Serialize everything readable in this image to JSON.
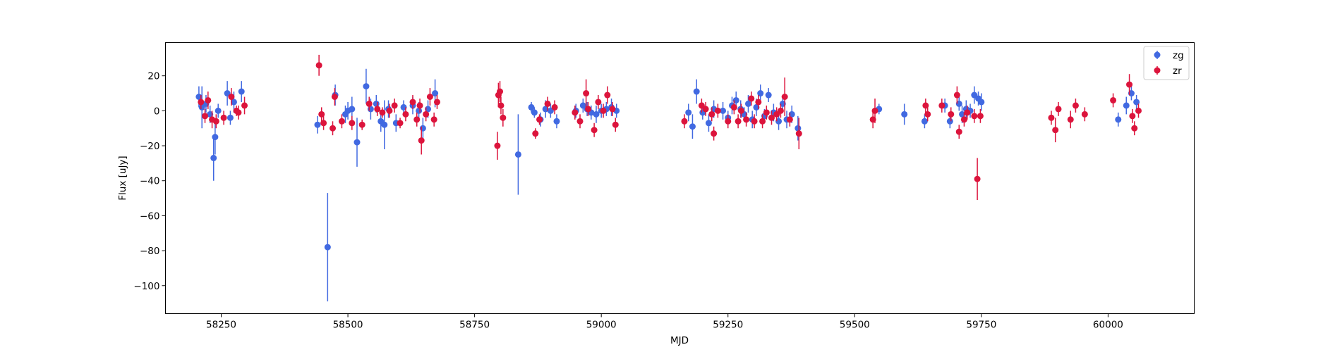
{
  "chart_data": {
    "type": "scatter",
    "title": "",
    "xlabel": "MJD",
    "ylabel": "Flux [uJy]",
    "xlim": [
      58140,
      60170
    ],
    "ylim": [
      -116,
      39
    ],
    "xticks": [
      58250,
      58500,
      58750,
      59000,
      59250,
      59500,
      59750,
      60000
    ],
    "yticks": [
      -100,
      -80,
      -60,
      -40,
      -20,
      0,
      20
    ],
    "grid": false,
    "legend_position": "top-right",
    "series": [
      {
        "name": "zg",
        "color": "#4169e1",
        "x": [
          58206,
          58212,
          58220,
          58228,
          58235,
          58238,
          58244,
          58262,
          58268,
          58275,
          58290,
          58440,
          58460,
          58475,
          58495,
          58500,
          58508,
          58518,
          58536,
          58545,
          58556,
          58565,
          58572,
          58580,
          58595,
          58610,
          58628,
          58640,
          58648,
          58658,
          58672,
          58836,
          58862,
          58868,
          58880,
          58890,
          58900,
          58912,
          58950,
          58964,
          58972,
          58980,
          58990,
          59000,
          59010,
          59020,
          59030,
          59172,
          59180,
          59188,
          59200,
          59212,
          59222,
          59240,
          59250,
          59258,
          59266,
          59275,
          59282,
          59290,
          59298,
          59306,
          59314,
          59322,
          59330,
          59340,
          59350,
          59358,
          59366,
          59376,
          59388,
          59548,
          59598,
          59638,
          59678,
          59688,
          59706,
          59712,
          59720,
          59728,
          59736,
          59744,
          59750,
          60020,
          60036,
          60046,
          60056
        ],
        "y": [
          8,
          2,
          4,
          -2,
          -27,
          -15,
          0,
          10,
          -4,
          5,
          11,
          -8,
          -78,
          9,
          -2,
          0,
          1,
          -18,
          14,
          1,
          4,
          -6,
          -8,
          1,
          -7,
          2,
          3,
          0,
          -10,
          1,
          10,
          -25,
          2,
          -1,
          -5,
          1,
          0,
          -6,
          0,
          3,
          1,
          -1,
          -2,
          0,
          1,
          2,
          0,
          -1,
          -9,
          11,
          -1,
          -7,
          1,
          0,
          -4,
          3,
          6,
          1,
          -2,
          4,
          -5,
          2,
          10,
          -3,
          9,
          -1,
          -6,
          4,
          -5,
          -2,
          -10,
          1,
          -2,
          -6,
          3,
          -6,
          4,
          -2,
          1,
          0,
          9,
          7,
          5,
          -5,
          3,
          10,
          5
        ],
        "err": [
          6,
          12,
          5,
          5,
          13,
          10,
          4,
          7,
          4,
          6,
          6,
          5,
          31,
          6,
          5,
          5,
          7,
          14,
          10,
          6,
          5,
          6,
          14,
          5,
          5,
          4,
          5,
          5,
          6,
          5,
          8,
          23,
          3,
          3,
          4,
          5,
          4,
          4,
          4,
          4,
          4,
          4,
          5,
          4,
          4,
          5,
          4,
          5,
          7,
          7,
          4,
          5,
          5,
          5,
          4,
          5,
          5,
          5,
          4,
          5,
          5,
          5,
          5,
          4,
          4,
          5,
          5,
          5,
          5,
          5,
          7,
          3,
          6,
          4,
          4,
          4,
          4,
          5,
          5,
          4,
          5,
          4,
          5,
          4,
          5,
          4,
          4
        ]
      },
      {
        "name": "zr",
        "color": "#dc143c",
        "x": [
          58210,
          58218,
          58224,
          58232,
          58240,
          58255,
          58270,
          58280,
          58284,
          58296,
          58443,
          58448,
          58452,
          58470,
          58474,
          58488,
          58508,
          58528,
          58542,
          58558,
          58568,
          58582,
          58592,
          58603,
          58614,
          58628,
          58636,
          58642,
          58645,
          58654,
          58662,
          58670,
          58676,
          58795,
          58797,
          58800,
          58802,
          58806,
          58870,
          58878,
          58894,
          58908,
          58948,
          58958,
          58970,
          58974,
          58986,
          58994,
          59004,
          59012,
          59022,
          59028,
          59164,
          59198,
          59206,
          59218,
          59222,
          59230,
          59250,
          59262,
          59270,
          59276,
          59286,
          59296,
          59302,
          59310,
          59318,
          59326,
          59336,
          59346,
          59354,
          59362,
          59372,
          59390,
          59536,
          59540,
          59640,
          59644,
          59672,
          59690,
          59702,
          59706,
          59716,
          59722,
          59736,
          59742,
          59748,
          59888,
          59896,
          59902,
          59926,
          59936,
          59954,
          60010,
          60042,
          60048,
          60052,
          60060
        ],
        "y": [
          5,
          -3,
          6,
          -5,
          -6,
          -4,
          8,
          0,
          -1,
          3,
          26,
          -2,
          -7,
          -10,
          8,
          -6,
          -7,
          -8,
          4,
          1,
          -1,
          0,
          3,
          -7,
          -2,
          5,
          -5,
          3,
          -17,
          -2,
          8,
          -5,
          5,
          -20,
          9,
          11,
          3,
          -4,
          -13,
          -5,
          4,
          2,
          -1,
          -6,
          10,
          1,
          -11,
          5,
          0,
          9,
          1,
          -8,
          -6,
          3,
          1,
          -2,
          -13,
          0,
          -6,
          2,
          -6,
          0,
          -5,
          7,
          -6,
          5,
          -6,
          -1,
          -4,
          -2,
          0,
          8,
          -5,
          -13,
          -5,
          0,
          3,
          -2,
          3,
          -2,
          9,
          -12,
          -5,
          -1,
          -3,
          -39,
          -3,
          -4,
          -11,
          1,
          -5,
          3,
          -2,
          6,
          15,
          -3,
          -10,
          0
        ],
        "err": [
          4,
          4,
          5,
          5,
          4,
          4,
          5,
          3,
          4,
          5,
          6,
          4,
          4,
          4,
          5,
          4,
          4,
          3,
          4,
          4,
          3,
          4,
          4,
          3,
          4,
          4,
          4,
          4,
          8,
          4,
          5,
          4,
          4,
          8,
          7,
          6,
          5,
          5,
          3,
          3,
          4,
          4,
          4,
          4,
          8,
          4,
          4,
          4,
          4,
          5,
          4,
          4,
          4,
          4,
          4,
          4,
          4,
          4,
          4,
          4,
          4,
          4,
          4,
          4,
          4,
          4,
          4,
          4,
          4,
          4,
          4,
          11,
          4,
          9,
          5,
          7,
          4,
          4,
          4,
          4,
          5,
          4,
          4,
          4,
          4,
          12,
          4,
          4,
          7,
          4,
          5,
          4,
          4,
          4,
          6,
          4,
          4,
          4
        ]
      }
    ]
  }
}
